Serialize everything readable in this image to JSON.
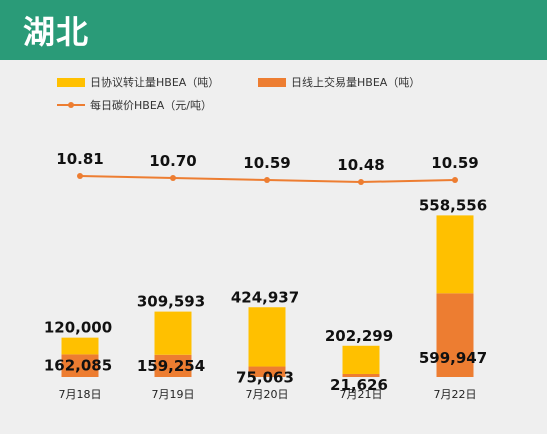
{
  "header": {
    "title": "湖北"
  },
  "colors": {
    "header_bg": "#2a9b78",
    "agreement": "#ffc000",
    "online": "#ed7d31",
    "price": "#ed7d31"
  },
  "chart_data": {
    "type": "bar",
    "stacked": true,
    "categories": [
      "7月18日",
      "7月19日",
      "7月20日",
      "7月21日",
      "7月22日"
    ],
    "series": [
      {
        "name": "日协议转让量HBEA（吨）",
        "values": [
          120000,
          309593,
          424937,
          202299,
          558556
        ]
      },
      {
        "name": "日线上交易量HBEA（吨）",
        "values": [
          162085,
          159254,
          75063,
          21626,
          599947
        ]
      }
    ],
    "line_series": {
      "name": "每日碳价HBEA（元/吨）",
      "values": [
        10.81,
        10.7,
        10.59,
        10.48,
        10.59
      ]
    },
    "value_labels": {
      "agreement": [
        "120,000",
        "309,593",
        "424,937",
        "202,299",
        "558,556"
      ],
      "online": [
        "162,085",
        "159,254",
        "75,063",
        "21,626",
        "599,947"
      ],
      "price": [
        "10.81",
        "10.70",
        "10.59",
        "10.48",
        "10.59"
      ]
    },
    "legend_position": "top-left"
  }
}
